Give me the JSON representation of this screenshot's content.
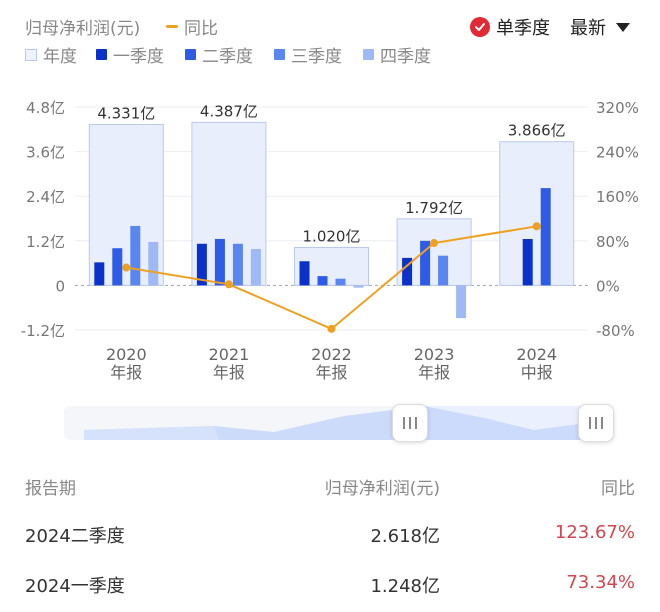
{
  "header": {
    "title": "归母净利润(元)",
    "yoy_label": "同比",
    "season_label": "单季度",
    "latest_label": "最新"
  },
  "legend": {
    "year": "年度",
    "q1": "一季度",
    "q2": "二季度",
    "q3": "三季度",
    "q4": "四季度"
  },
  "colors": {
    "year_fill": "#e8eefc",
    "year_stroke": "#b9c9ee",
    "q1": "#0a32c8",
    "q2": "#2e5ce6",
    "q3": "#5a86f0",
    "q4": "#9fb8f6",
    "yoy": "#f0a020",
    "positive": "#d4454f"
  },
  "chart_data": {
    "type": "bar",
    "categories": [
      [
        "2020",
        "年报"
      ],
      [
        "2021",
        "年报"
      ],
      [
        "2022",
        "年报"
      ],
      [
        "2023",
        "年报"
      ],
      [
        "2024",
        "中报"
      ]
    ],
    "year_totals": [
      4.331,
      4.387,
      1.02,
      1.792,
      3.866
    ],
    "year_total_labels": [
      "4.331亿",
      "4.387亿",
      "1.020亿",
      "1.792亿",
      "3.866亿"
    ],
    "series": [
      {
        "name": "一季度",
        "values": [
          0.62,
          1.12,
          0.65,
          0.74,
          1.248
        ]
      },
      {
        "name": "二季度",
        "values": [
          1.0,
          1.25,
          0.25,
          1.2,
          2.618
        ]
      },
      {
        "name": "三季度",
        "values": [
          1.6,
          1.12,
          0.18,
          0.8,
          null
        ]
      },
      {
        "name": "四季度",
        "values": [
          1.17,
          0.98,
          -0.06,
          -0.88,
          null
        ]
      }
    ],
    "yoy_line": {
      "name": "同比",
      "values": [
        32,
        2,
        -78,
        76,
        106
      ]
    },
    "y_left": {
      "ticks": [
        -1.2,
        0,
        1.2,
        2.4,
        3.6,
        4.8
      ],
      "tick_labels": [
        "-1.2亿",
        "0",
        "1.2亿",
        "2.4亿",
        "3.6亿",
        "4.8亿"
      ],
      "range": [
        -1.2,
        4.8
      ]
    },
    "y_right": {
      "ticks": [
        -80,
        0,
        80,
        160,
        240,
        320
      ],
      "tick_labels": [
        "-80%",
        "0%",
        "80%",
        "160%",
        "240%",
        "320%"
      ],
      "range": [
        -80,
        320
      ]
    }
  },
  "table": {
    "headers": [
      "报告期",
      "归母净利润(元)",
      "同比"
    ],
    "rows": [
      [
        "2024二季度",
        "2.618亿",
        "123.67%"
      ],
      [
        "2024一季度",
        "1.248亿",
        "73.34%"
      ]
    ]
  }
}
